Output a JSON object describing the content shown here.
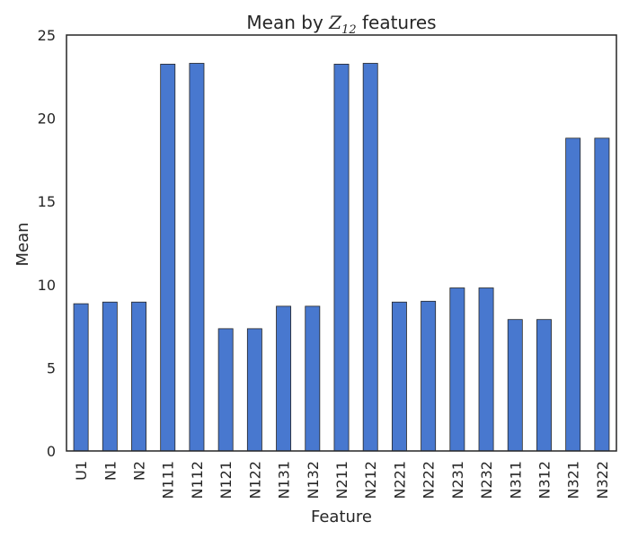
{
  "chart_data": {
    "type": "bar",
    "title": {
      "prefix": "Mean by ",
      "math_base": "Z",
      "math_sub": "12",
      "suffix": " features"
    },
    "xlabel": "Feature",
    "ylabel": "Mean",
    "ylim": [
      0,
      25
    ],
    "yticks": [
      0,
      5,
      10,
      15,
      20,
      25
    ],
    "categories": [
      "U1",
      "N1",
      "N2",
      "N111",
      "N112",
      "N121",
      "N122",
      "N131",
      "N132",
      "N211",
      "N212",
      "N221",
      "N222",
      "N231",
      "N232",
      "N311",
      "N312",
      "N321",
      "N322"
    ],
    "values": [
      8.85,
      8.95,
      8.95,
      23.25,
      23.3,
      7.35,
      7.35,
      8.7,
      8.7,
      23.25,
      23.3,
      8.95,
      9.0,
      9.8,
      9.8,
      7.9,
      7.9,
      18.8,
      18.8
    ],
    "colors": {
      "bar": "#4878cf",
      "bar_edge": "#262626",
      "frame": "#262626"
    },
    "grid": false,
    "legend": "none"
  }
}
